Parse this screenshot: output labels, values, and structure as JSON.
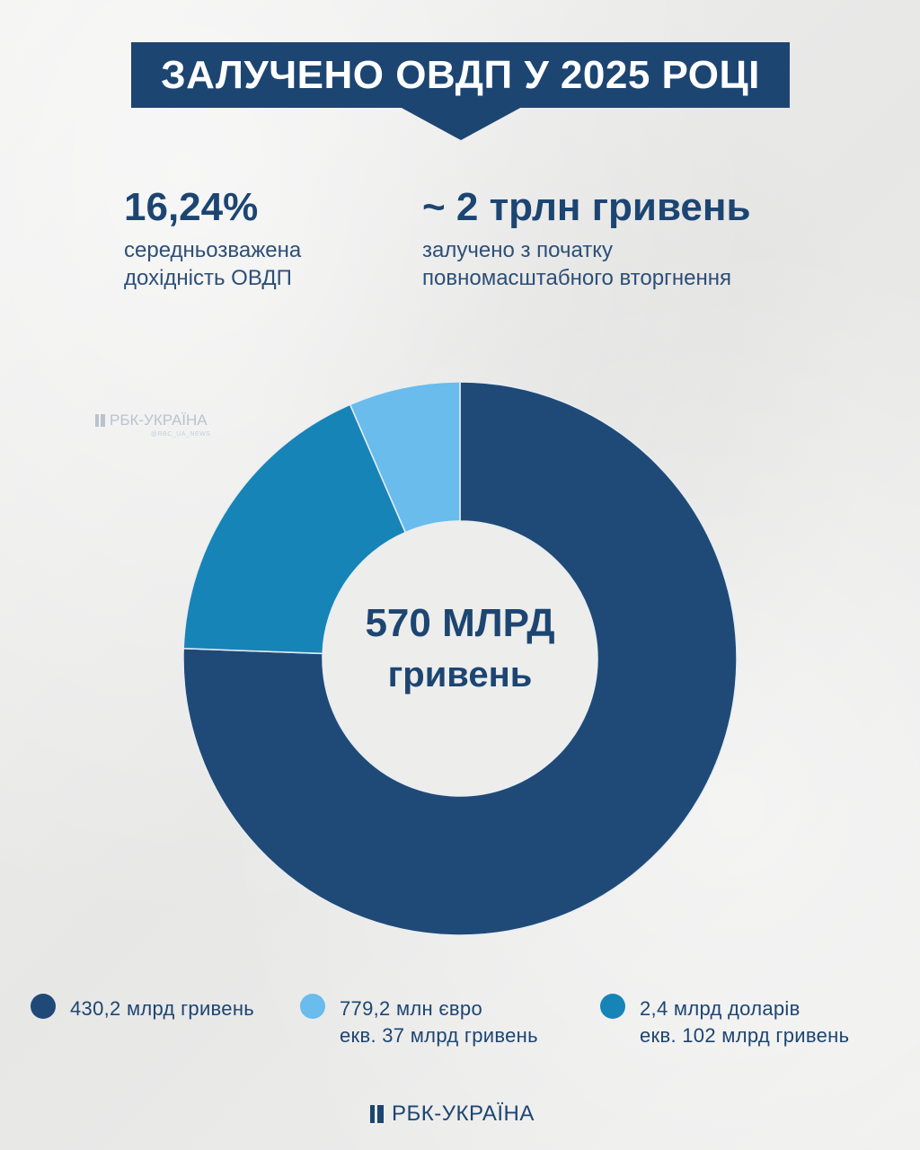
{
  "header": {
    "title": "ЗАЛУЧЕНО ОВДП У 2025 РОЦІ"
  },
  "stats": [
    {
      "value": "16,24%",
      "description": "середньозважена\nдохідність ОВДП"
    },
    {
      "value": "~ 2 трлн гривень",
      "description": "залучено з початку\nповномасштабного вторгнення"
    }
  ],
  "watermark": {
    "brand": "РБК-УКРАЇНА",
    "handle": "@RBC_UA_NEWS"
  },
  "chart_data": {
    "type": "pie",
    "donut": true,
    "center_value": "570 МЛРД",
    "center_unit": "гривень",
    "total": 570,
    "unit": "млрд гривень",
    "slices": [
      {
        "label_line1": "430,2 млрд гривень",
        "label_line2": "",
        "value": 430.2,
        "color": "#1f4a78"
      },
      {
        "label_line1": "2,4 млрд доларів",
        "label_line2": "екв. 102 млрд гривень",
        "value": 102,
        "color": "#1784b8"
      },
      {
        "label_line1": "779,2 млн євро",
        "label_line2": "екв. 37 млрд гривень",
        "value": 37,
        "color": "#69bcec"
      }
    ]
  },
  "legend_order": [
    0,
    2,
    1
  ],
  "footer": {
    "brand": "РБК-УКРАЇНА"
  },
  "colors": {
    "primary": "#1d4572",
    "background": "#ededec"
  }
}
